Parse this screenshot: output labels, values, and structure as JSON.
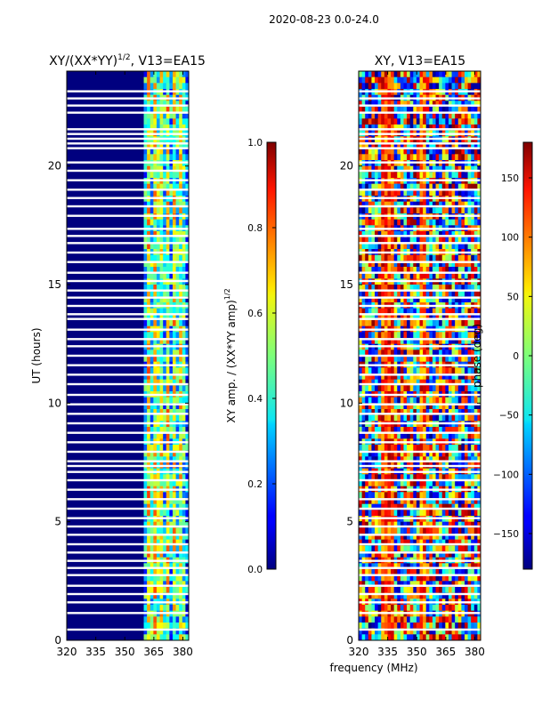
{
  "suptitle": "2020-08-23 0.0-24.0",
  "chart_data": [
    {
      "type": "heatmap",
      "title_main": "XY/(XX*YY)",
      "title_sup": "1/2",
      "title_rest": ", V13=EA15",
      "xlabel": "",
      "ylabel": "UT (hours)",
      "xlim": [
        320,
        383
      ],
      "ylim": [
        0,
        24
      ],
      "xticks": [
        320,
        335,
        350,
        365,
        380
      ],
      "yticks": [
        0,
        5,
        10,
        15,
        20
      ],
      "colorbar": {
        "label_main": "XY amp. / (XX*YY amp)",
        "label_sup": "1/2",
        "min": 0.0,
        "max": 1.0,
        "ticks": [
          "0.0",
          "0.2",
          "0.4",
          "0.6",
          "0.8",
          "1.0"
        ]
      },
      "bright_band_mhz": [
        360,
        382
      ]
    },
    {
      "type": "heatmap",
      "title": "XY, V13=EA15",
      "xlabel": "frequency (MHz)",
      "ylabel": "",
      "xlim": [
        320,
        383
      ],
      "ylim": [
        0,
        24
      ],
      "xticks": [
        320,
        335,
        350,
        365,
        380
      ],
      "yticks": [
        0,
        5,
        10,
        15,
        20
      ],
      "colorbar": {
        "label": "phase (deg)",
        "min": -180,
        "max": 180,
        "ticks": [
          "−150",
          "−100",
          "−50",
          "0",
          "50",
          "100",
          "150"
        ]
      }
    }
  ],
  "flag_gaps_ut": [
    0.45,
    1.15,
    1.6,
    1.95,
    2.3,
    2.75,
    3.05,
    3.35,
    3.7,
    4.05,
    4.45,
    4.8,
    5.15,
    5.55,
    5.95,
    6.35,
    6.75,
    7.1,
    7.35,
    7.55,
    7.95,
    8.35,
    8.75,
    9.15,
    9.55,
    9.95,
    10.35,
    10.8,
    11.2,
    11.6,
    12.0,
    12.4,
    12.7,
    13.1,
    13.55,
    13.75,
    14.1,
    14.45,
    14.75,
    15.15,
    15.5,
    15.95,
    16.35,
    16.75,
    17.05,
    17.35,
    17.9,
    18.3,
    18.65,
    19.0,
    19.4,
    19.8,
    20.15,
    20.75,
    20.95,
    21.15,
    21.35,
    21.55,
    22.25,
    22.55,
    22.85,
    23.15
  ]
}
